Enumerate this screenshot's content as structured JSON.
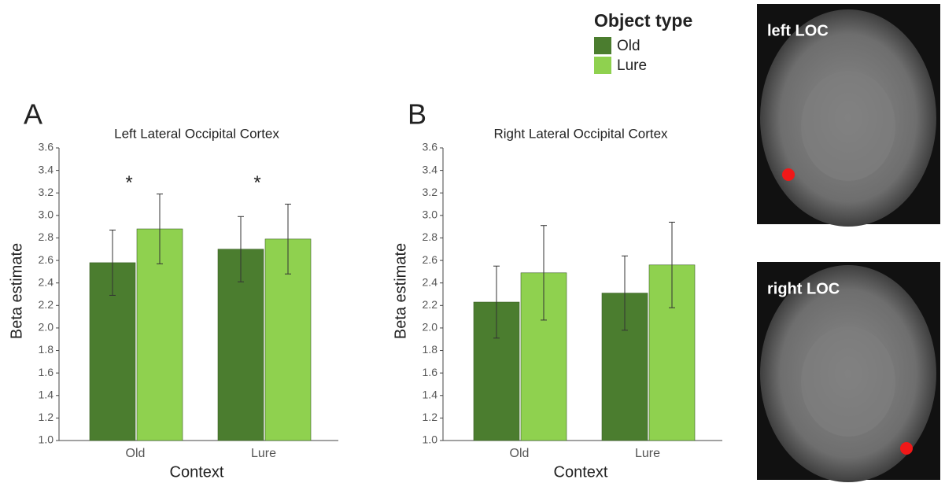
{
  "legend_title": "Object type",
  "images": [
    {
      "label": "left LOC"
    },
    {
      "label": "right LOC"
    }
  ],
  "chart_data": [
    {
      "type": "bar",
      "panel_label": "A",
      "title": "Left Lateral Occipital Cortex",
      "x_label": "Context",
      "y_label": "Beta estimate",
      "categories": [
        "Old",
        "Lure"
      ],
      "series": [
        {
          "name": "Old",
          "color": "#4b7d2f",
          "values": [
            2.58,
            2.7
          ],
          "errors": [
            0.29,
            0.29
          ]
        },
        {
          "name": "Lure",
          "color": "#8fd14f",
          "values": [
            2.88,
            2.79
          ],
          "errors": [
            0.31,
            0.31
          ]
        }
      ],
      "annotations": [
        "*",
        "*"
      ],
      "ylim": [
        1.0,
        3.6
      ],
      "yticks": [
        {
          "value": 1.0,
          "label": "1.0"
        },
        1.2,
        1.4,
        1.6,
        1.8,
        {
          "value": 2.0,
          "label": "2.0"
        },
        2.2,
        2.4,
        2.6,
        2.8,
        {
          "value": 3.0,
          "label": "3.0"
        },
        3.2,
        3.4,
        3.6
      ]
    },
    {
      "type": "bar",
      "panel_label": "B",
      "title": "Right Lateral Occipital Cortex",
      "x_label": "Context",
      "y_label": "Beta estimate",
      "categories": [
        "Old",
        "Lure"
      ],
      "series": [
        {
          "name": "Old",
          "color": "#4b7d2f",
          "values": [
            2.23,
            2.31
          ],
          "errors": [
            0.32,
            0.33
          ]
        },
        {
          "name": "Lure",
          "color": "#8fd14f",
          "values": [
            2.49,
            2.56
          ],
          "errors": [
            0.42,
            0.38
          ]
        }
      ],
      "ylim": [
        1.0,
        3.6
      ],
      "yticks": [
        {
          "value": 1.0,
          "label": "1.0"
        },
        1.2,
        1.4,
        1.6,
        1.8,
        {
          "value": 2.0,
          "label": "2.0"
        },
        2.2,
        2.4,
        2.6,
        2.8,
        {
          "value": 3.0,
          "label": "3.0"
        },
        3.2,
        3.4,
        3.6
      ]
    }
  ]
}
